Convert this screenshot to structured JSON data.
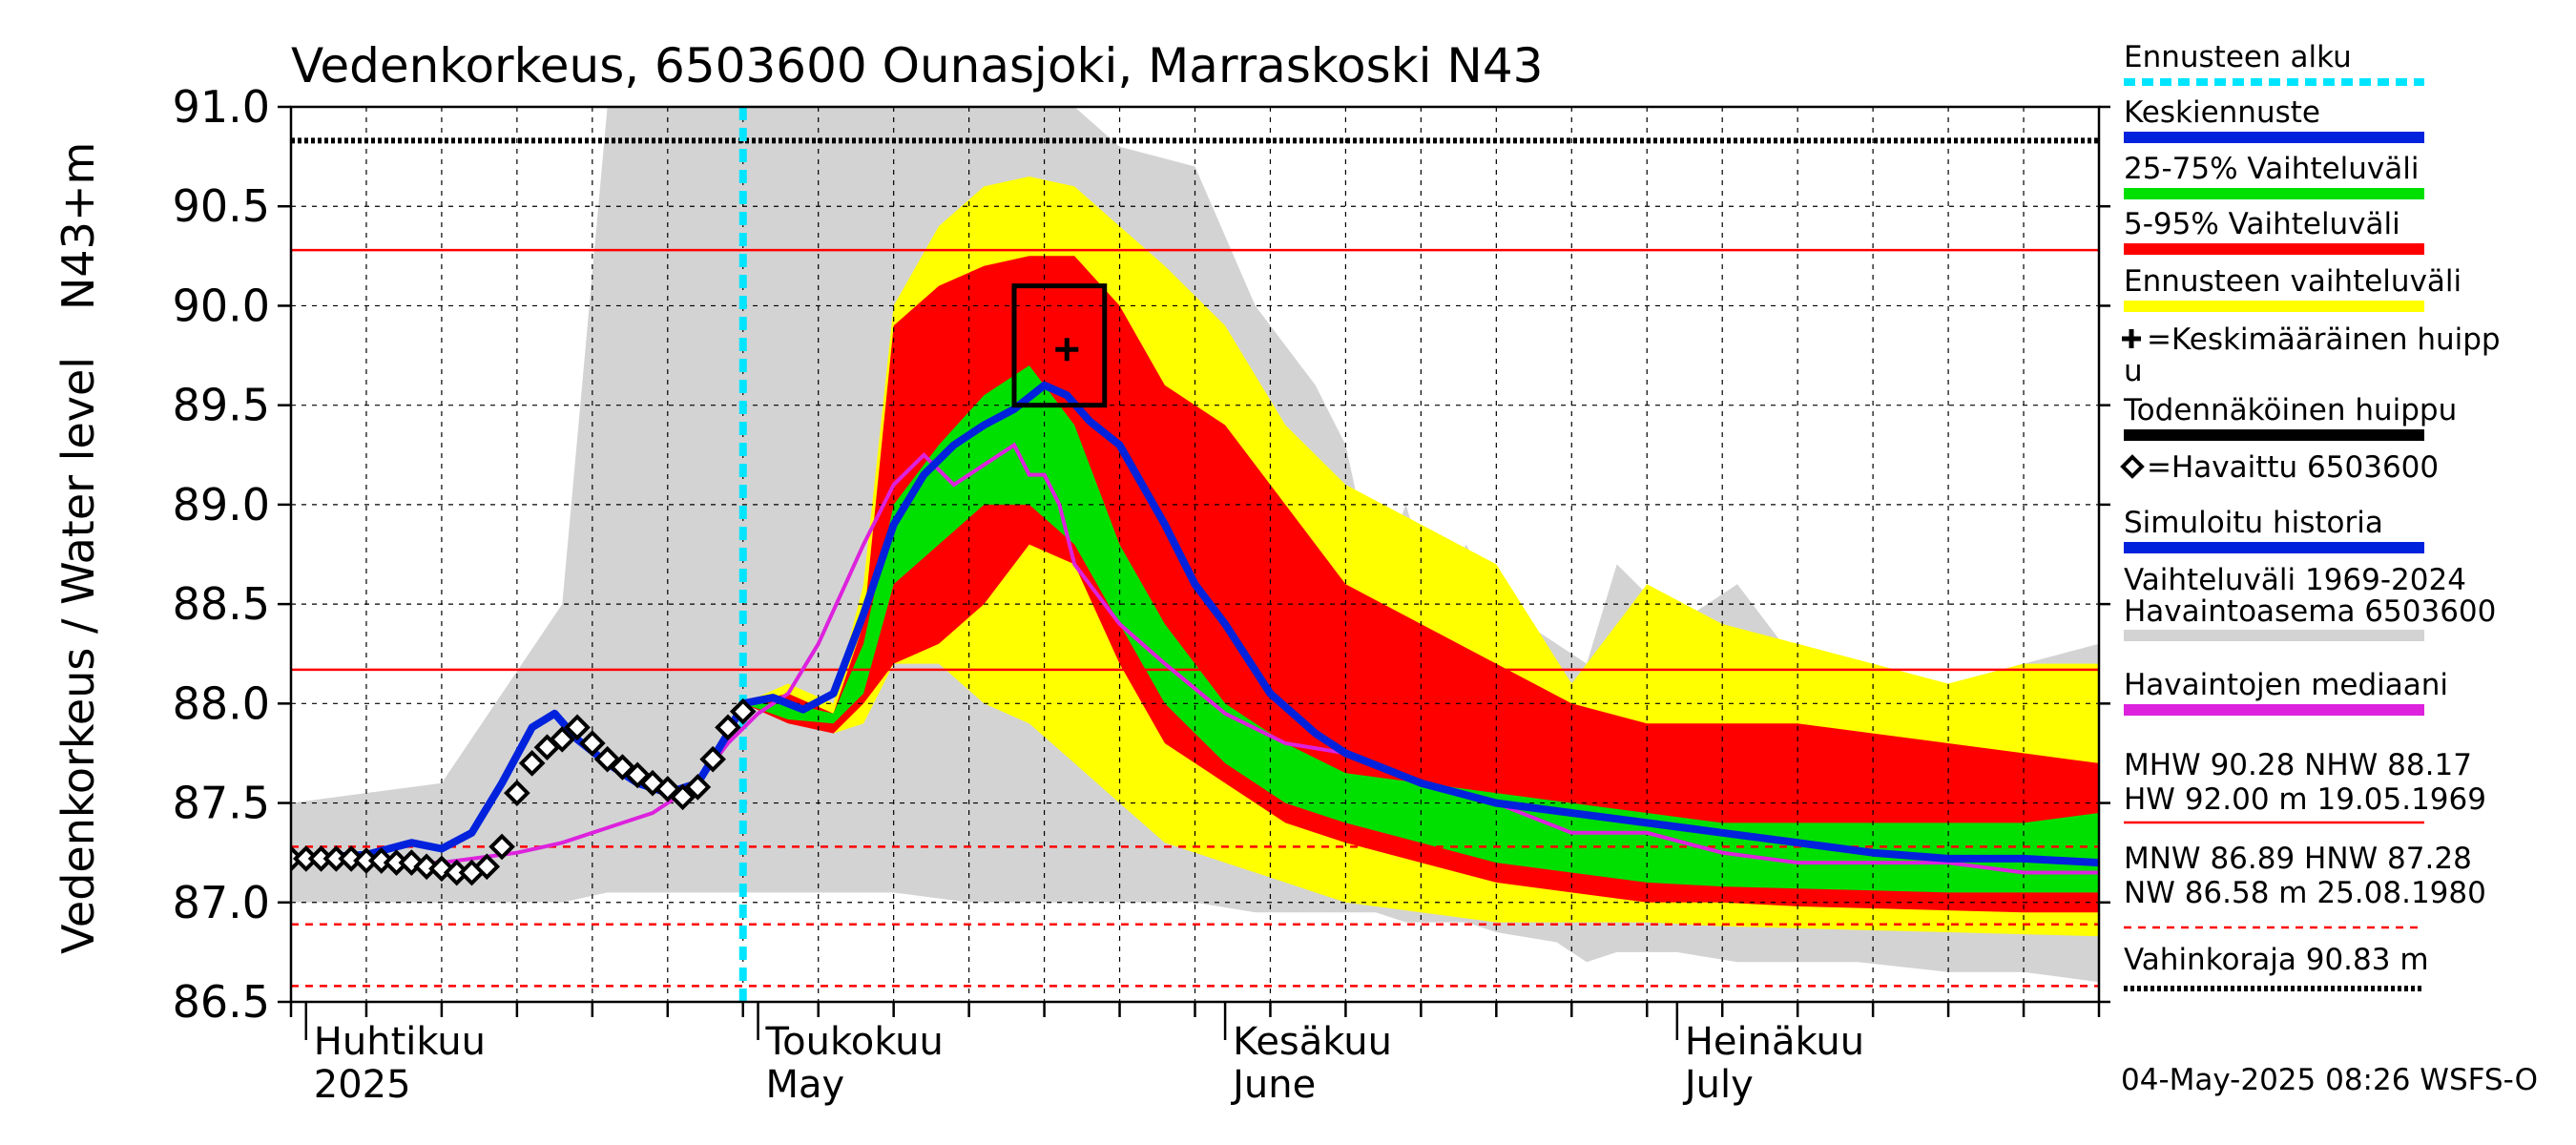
{
  "chart_data": {
    "type": "area",
    "title": "Vedenkorkeus, 6503600 Ounasjoki, Marraskoski N43",
    "ylabel": "Vedenkorkeus / Water level",
    "ylabel_unit": "N43+m",
    "ylim": [
      86.5,
      91.0
    ],
    "yticks": [
      "86.5",
      "87.0",
      "87.5",
      "88.0",
      "88.5",
      "89.0",
      "89.5",
      "90.0",
      "90.5",
      "91.0"
    ],
    "x_days": [
      0,
      120
    ],
    "months": [
      {
        "day": 1,
        "label_fi": "Huhtikuu",
        "label_en": "2025"
      },
      {
        "day": 31,
        "label_fi": "Toukokuu",
        "label_en": "May"
      },
      {
        "day": 62,
        "label_fi": "Kesäkuu",
        "label_en": "June"
      },
      {
        "day": 92,
        "label_fi": "Heinäkuu",
        "label_en": "July"
      }
    ],
    "forecast_start_day": 30,
    "reference_lines": [
      {
        "value": 90.83,
        "style": "dotted-black",
        "name": "Vahinkoraja"
      },
      {
        "value": 90.28,
        "style": "solid-red",
        "name": "MHW"
      },
      {
        "value": 88.17,
        "style": "solid-red",
        "name": "NHW"
      },
      {
        "value": 87.28,
        "style": "dashed-red",
        "name": "HNW"
      },
      {
        "value": 86.89,
        "style": "dashed-red",
        "name": "MNW"
      },
      {
        "value": 86.58,
        "style": "dashed-red",
        "name": "NW"
      }
    ],
    "history_range": {
      "x": [
        0,
        10,
        18,
        21,
        22,
        24,
        28,
        30,
        35,
        40,
        45,
        52,
        55,
        60,
        64,
        68,
        70,
        72,
        74,
        76,
        78,
        80,
        84,
        86,
        88,
        92,
        96,
        100,
        104,
        110,
        115,
        120
      ],
      "upper": [
        87.5,
        87.6,
        88.5,
        91.0,
        91.0,
        91.0,
        91.0,
        91.0,
        91.0,
        91.0,
        91.0,
        91.0,
        90.8,
        90.7,
        90.0,
        89.6,
        89.3,
        88.6,
        89.0,
        88.5,
        88.8,
        88.5,
        88.3,
        88.2,
        88.7,
        88.4,
        88.6,
        88.2,
        88.0,
        88.1,
        88.2,
        88.3
      ],
      "lower": [
        87.0,
        87.0,
        87.0,
        87.05,
        87.05,
        87.05,
        87.05,
        87.05,
        87.05,
        87.05,
        87.0,
        87.0,
        87.0,
        87.0,
        86.95,
        86.95,
        86.95,
        86.95,
        86.9,
        86.9,
        86.9,
        86.85,
        86.8,
        86.7,
        86.75,
        86.75,
        86.7,
        86.7,
        86.7,
        86.65,
        86.65,
        86.6
      ]
    },
    "forecast_x": [
      30,
      33,
      36,
      38,
      40,
      43,
      46,
      49,
      52,
      55,
      58,
      62,
      66,
      70,
      75,
      80,
      85,
      90,
      95,
      100,
      105,
      110,
      115,
      120
    ],
    "forecast_range": {
      "upper": [
        88.0,
        88.1,
        88.0,
        88.6,
        90.0,
        90.4,
        90.6,
        90.65,
        90.6,
        90.4,
        90.2,
        89.9,
        89.4,
        89.1,
        88.9,
        88.7,
        88.1,
        88.6,
        88.4,
        88.3,
        88.2,
        88.1,
        88.2,
        88.2
      ],
      "lower": [
        88.0,
        87.95,
        87.85,
        87.9,
        88.2,
        88.2,
        88.0,
        87.9,
        87.7,
        87.5,
        87.3,
        87.2,
        87.1,
        87.0,
        86.95,
        86.9,
        86.9,
        86.9,
        86.88,
        86.87,
        86.86,
        86.85,
        86.84,
        86.83
      ]
    },
    "range_5_95": {
      "upper": [
        88.0,
        88.05,
        87.95,
        88.4,
        89.9,
        90.1,
        90.2,
        90.25,
        90.25,
        90.0,
        89.6,
        89.4,
        89.0,
        88.6,
        88.4,
        88.2,
        88.0,
        87.9,
        87.9,
        87.9,
        87.85,
        87.8,
        87.75,
        87.7
      ],
      "lower": [
        88.0,
        87.9,
        87.85,
        88.0,
        88.2,
        88.3,
        88.5,
        88.8,
        88.7,
        88.2,
        87.8,
        87.6,
        87.4,
        87.3,
        87.2,
        87.1,
        87.05,
        87.0,
        87.0,
        86.98,
        86.97,
        86.96,
        86.95,
        86.95
      ]
    },
    "range_25_75": {
      "upper": [
        88.0,
        88.0,
        87.95,
        88.3,
        89.0,
        89.3,
        89.55,
        89.7,
        89.4,
        88.8,
        88.4,
        88.0,
        87.8,
        87.65,
        87.6,
        87.55,
        87.5,
        87.45,
        87.4,
        87.4,
        87.4,
        87.4,
        87.4,
        87.45
      ],
      "lower": [
        88.0,
        87.92,
        87.9,
        88.05,
        88.6,
        88.8,
        89.0,
        89.0,
        88.8,
        88.4,
        88.0,
        87.7,
        87.5,
        87.4,
        87.3,
        87.2,
        87.15,
        87.1,
        87.08,
        87.07,
        87.06,
        87.05,
        87.05,
        87.05
      ]
    },
    "series": [
      {
        "name": "Keskiennuste",
        "color": "#0022dd",
        "x": [
          0,
          5,
          8,
          10,
          12,
          14,
          16,
          17.5,
          19,
          21,
          23,
          25,
          27,
          29,
          30,
          32,
          34,
          36,
          38,
          40,
          42,
          44,
          46,
          48,
          50,
          51.5,
          53,
          55,
          58,
          60,
          62,
          65,
          68,
          70,
          75,
          80,
          85,
          90,
          95,
          100,
          105,
          110,
          115,
          120
        ],
        "y": [
          87.22,
          87.24,
          87.3,
          87.27,
          87.35,
          87.6,
          87.88,
          87.95,
          87.82,
          87.7,
          87.6,
          87.55,
          87.6,
          87.85,
          88.0,
          88.03,
          87.97,
          88.05,
          88.45,
          88.9,
          89.15,
          89.3,
          89.4,
          89.48,
          89.6,
          89.55,
          89.42,
          89.3,
          88.9,
          88.6,
          88.4,
          88.05,
          87.85,
          87.75,
          87.6,
          87.5,
          87.45,
          87.4,
          87.35,
          87.3,
          87.25,
          87.22,
          87.22,
          87.2
        ]
      },
      {
        "name": "Havaittu 6503600",
        "color": "#000000",
        "x": [
          0,
          1,
          2,
          3,
          4,
          5,
          6,
          7,
          8,
          9,
          10,
          11,
          12,
          13,
          14,
          15,
          16,
          17,
          18,
          19,
          20,
          21,
          22,
          23,
          24,
          25,
          26,
          27,
          28,
          29,
          30
        ],
        "y": [
          87.22,
          87.22,
          87.22,
          87.22,
          87.22,
          87.21,
          87.21,
          87.2,
          87.2,
          87.18,
          87.17,
          87.15,
          87.15,
          87.18,
          87.28,
          87.55,
          87.7,
          87.78,
          87.82,
          87.88,
          87.8,
          87.72,
          87.68,
          87.64,
          87.6,
          87.57,
          87.53,
          87.58,
          87.72,
          87.88,
          87.96
        ]
      },
      {
        "name": "Havaintojen mediaani",
        "color": "#dd22dd",
        "x": [
          0,
          10,
          15,
          18,
          20,
          22,
          24,
          25,
          27,
          29,
          31,
          33,
          35,
          38,
          40,
          42,
          44,
          46,
          48,
          49,
          50,
          51,
          52,
          55,
          58,
          62,
          66,
          70,
          75,
          80,
          85,
          90,
          95,
          100,
          105,
          110,
          115,
          120
        ],
        "y": [
          87.2,
          87.2,
          87.25,
          87.3,
          87.35,
          87.4,
          87.45,
          87.5,
          87.6,
          87.8,
          87.95,
          88.05,
          88.3,
          88.8,
          89.1,
          89.25,
          89.1,
          89.2,
          89.3,
          89.15,
          89.15,
          89.0,
          88.7,
          88.4,
          88.2,
          87.95,
          87.8,
          87.75,
          87.6,
          87.5,
          87.35,
          87.35,
          87.25,
          87.2,
          87.2,
          87.2,
          87.15,
          87.15
        ]
      }
    ],
    "peak_box": {
      "x_center": 51,
      "x_half_width": 3,
      "y_low": 89.5,
      "y_high": 90.1
    },
    "peak_mean": {
      "x": 51.5,
      "y": 89.78
    },
    "legend": {
      "placement": "right",
      "items": [
        {
          "label": "Ennusteen alku",
          "swatch": "cyan-dotted",
          "color": "#00e5ff"
        },
        {
          "label": "Keskiennuste",
          "swatch": "line",
          "color": "#0022dd"
        },
        {
          "label": "25-75% Vaihteluväli",
          "swatch": "line",
          "color": "#00e000"
        },
        {
          "label": "5-95% Vaihteluväli",
          "swatch": "line",
          "color": "#ff0000"
        },
        {
          "label": "Ennusteen vaihteluväli",
          "swatch": "line",
          "color": "#ffff00"
        },
        {
          "label": "=Keskimääräinen huipp",
          "label_cont": "u",
          "swatch": "plus",
          "color": "#000000"
        },
        {
          "label": "Todennäköinen huippu",
          "swatch": "line",
          "color": "#000000"
        },
        {
          "label": "=Havaittu 6503600",
          "swatch": "diamond",
          "color": "#000000"
        },
        {
          "label": "Simuloitu historia",
          "swatch": "line",
          "color": "#0022dd"
        },
        {
          "label": "Vaihteluväli 1969-2024",
          "label_cont": " Havaintoasema 6503600",
          "swatch": "line",
          "color": "#d3d3d3"
        },
        {
          "label": "Havaintojen mediaani",
          "swatch": "line",
          "color": "#dd22dd"
        }
      ],
      "stats": [
        {
          "line1": "MHW  90.28 NHW  88.17",
          "line2": "HW  92.00 m 19.05.1969",
          "swatch": "solid-red"
        },
        {
          "line1": "MNW  86.89 HNW  87.28",
          "line2": "NW  86.58 m 25.08.1980",
          "swatch": "dashed-red"
        },
        {
          "line1": "Vahinkoraja 90.83 m",
          "swatch": "dotted-black"
        }
      ]
    },
    "footer": "04-May-2025 08:26 WSFS-O"
  },
  "colors": {
    "history": "#d3d3d3",
    "forecast_range": "#ffff00",
    "range_5_95": "#ff0000",
    "range_25_75": "#00e000",
    "forecast_start": "#00e5ff"
  }
}
